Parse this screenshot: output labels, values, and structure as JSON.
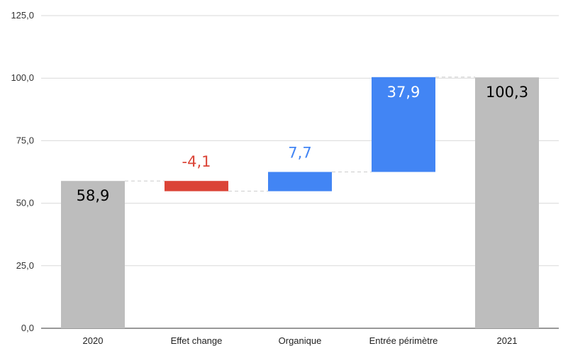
{
  "chart_data": {
    "type": "bar",
    "subtype": "waterfall",
    "title": "",
    "xlabel": "",
    "ylabel": "",
    "ylim": [
      0,
      125
    ],
    "yticks": [
      0,
      25,
      50,
      75,
      100,
      125
    ],
    "ytick_labels": [
      "0,0",
      "25,0",
      "50,0",
      "75,0",
      "100,0",
      "125,0"
    ],
    "grid": true,
    "legend": "none",
    "categories": [
      "2020",
      "Effet change",
      "Organique",
      "Entrée périmètre",
      "2021"
    ],
    "bars": [
      {
        "category": "2020",
        "kind": "total",
        "value": 58.9,
        "label": "58,9",
        "color": "#bdbdbd",
        "label_color": "#000000"
      },
      {
        "category": "Effet change",
        "kind": "delta",
        "value": -4.1,
        "label": "-4,1",
        "color": "#db4437",
        "label_color": "#db4437"
      },
      {
        "category": "Organique",
        "kind": "delta",
        "value": 7.7,
        "label": "7,7",
        "color": "#4285f4",
        "label_color": "#4285f4"
      },
      {
        "category": "Entrée périmètre",
        "kind": "delta",
        "value": 37.9,
        "label": "37,9",
        "color": "#4285f4",
        "label_color": "#ffffff"
      },
      {
        "category": "2021",
        "kind": "total",
        "value": 100.3,
        "label": "100,3",
        "color": "#bdbdbd",
        "label_color": "#000000"
      }
    ],
    "colors": {
      "total": "#bdbdbd",
      "decrease": "#db4437",
      "increase": "#4285f4",
      "grid": "#d9d9d9",
      "axis": "#333333",
      "connector": "#cccccc"
    }
  }
}
